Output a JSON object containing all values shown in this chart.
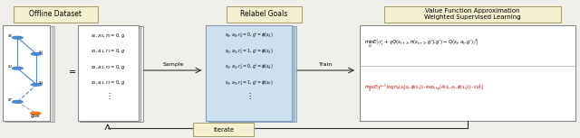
{
  "bg_color": "#f0f0eb",
  "title_box_color": "#f5f0d0",
  "title_box_edge": "#aaa070",
  "white_box_color": "#ffffff",
  "white_box_edge": "#888888",
  "blue_box_color": "#cce0f0",
  "blue_box_edge": "#8899bb",
  "result_box_color": "#ffffff",
  "result_box_edge": "#888888",
  "iterate_box_color": "#f5f0d0",
  "iterate_box_edge": "#aaa070",
  "arrow_color": "#333333",
  "label_offline": "Offline Dataset",
  "label_relabel": "Relabel Goals",
  "label_vf": "Value Function Approximation\nWeighted Supervised Learning",
  "label_sample": "Sample",
  "label_train": "Train",
  "label_iterate": "Iterate",
  "offline_data_lines": [
    "$s_0, a_0, r_0=0, g$",
    "$s_1, a_1, r_1=0, g$",
    "$s_2, a_2, r_2=0, g$",
    "$s_3, a_3, r_3=0, g$"
  ],
  "relabel_data_lines": [
    "$s_0, a_0, r_0'=0, g'=\\phi(s_3)$",
    "$s_1, a_1, r_1'=1, g'=\\phi(s_2)$",
    "$s_2, a_2, r_2'=0, g'=\\phi(s_4)$",
    "$s_3, a_3, r_3'=1, g'=\\phi(s_T)$"
  ],
  "node_colors_blue": "#4d88cc",
  "node_color_orange": "#ee7722",
  "node_color_edge": "#2255aa"
}
